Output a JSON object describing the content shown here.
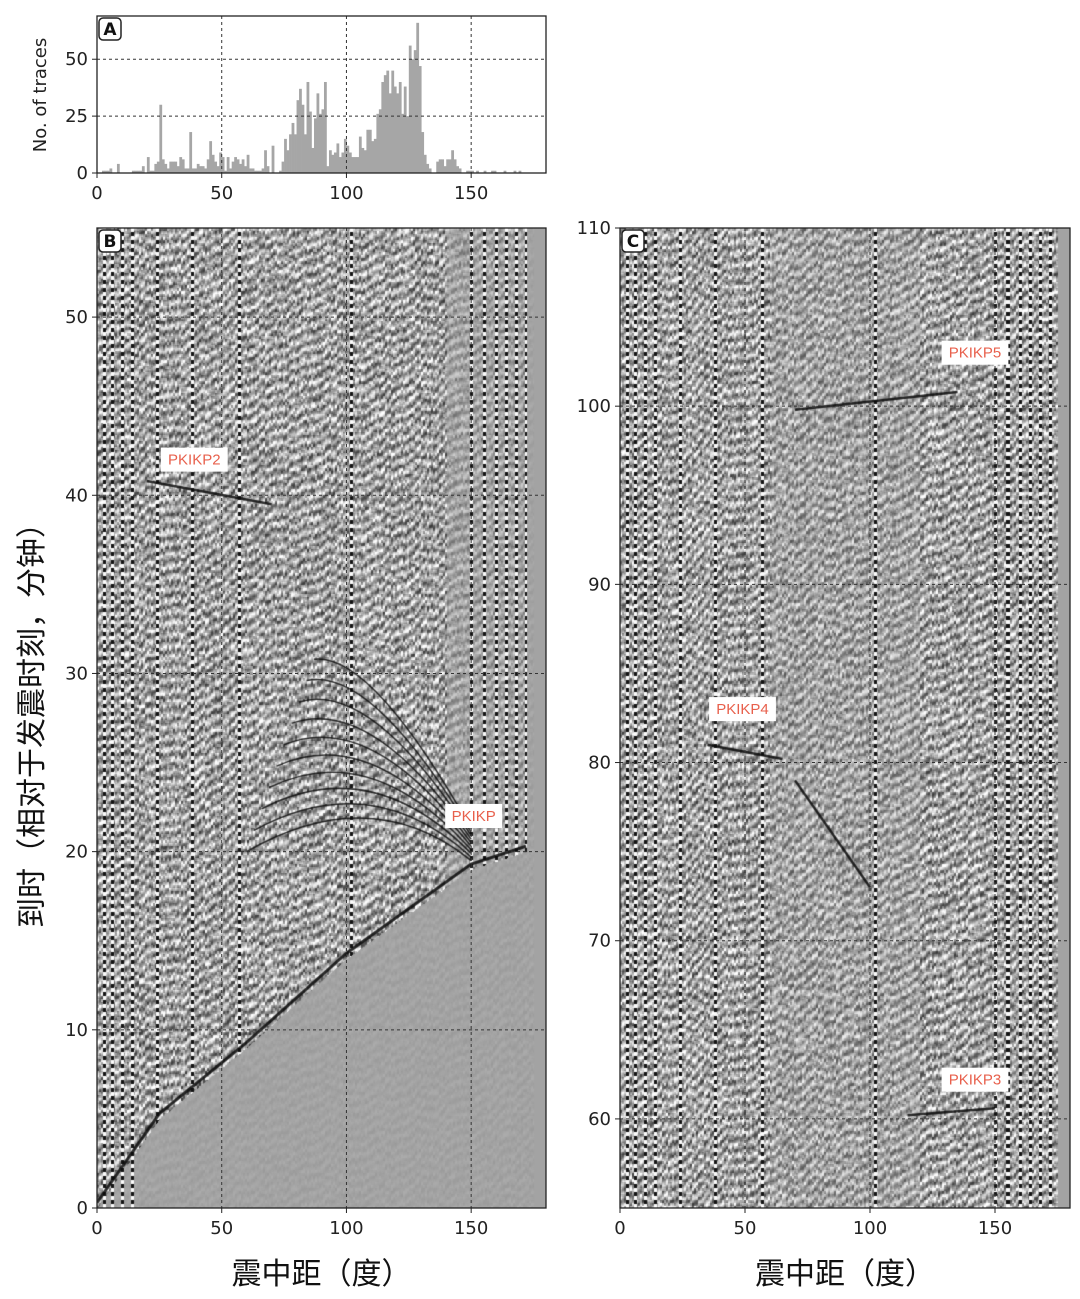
{
  "chart_data": [
    {
      "panel": "A",
      "type": "bar",
      "ylabel": "No. of traces",
      "xlabel": "",
      "xlim": [
        0,
        180
      ],
      "ylim": [
        0,
        69
      ],
      "xticks": [
        0,
        50,
        100,
        150
      ],
      "yticks": [
        0,
        25,
        50
      ],
      "grid": true,
      "bin_width": 1,
      "values": [
        0,
        0,
        1,
        1,
        1,
        2,
        0,
        0,
        4,
        0,
        0,
        0,
        0,
        0,
        1,
        1,
        1,
        1,
        3,
        0,
        7,
        1,
        1,
        4,
        5,
        30,
        6,
        4,
        2,
        5,
        5,
        5,
        3,
        7,
        6,
        2,
        2,
        18,
        2,
        2,
        4,
        3,
        3,
        2,
        6,
        14,
        8,
        5,
        3,
        9,
        7,
        1,
        7,
        2,
        5,
        7,
        6,
        4,
        6,
        3,
        8,
        2,
        2,
        1,
        1,
        1,
        2,
        10,
        3,
        0,
        12,
        0,
        0,
        1,
        5,
        15,
        10,
        17,
        22,
        17,
        32,
        37,
        30,
        17,
        40,
        27,
        11,
        24,
        35,
        26,
        28,
        40,
        3,
        10,
        8,
        9,
        13,
        7,
        9,
        15,
        12,
        9,
        7,
        7,
        7,
        16,
        11,
        10,
        19,
        19,
        14,
        15,
        26,
        28,
        40,
        43,
        45,
        35,
        45,
        38,
        35,
        40,
        26,
        38,
        25,
        56,
        50,
        54,
        66,
        47,
        18,
        8,
        4,
        2,
        0,
        0,
        5,
        6,
        6,
        3,
        6,
        6,
        10,
        6,
        3,
        2,
        0,
        0,
        1,
        1,
        1,
        0,
        1,
        0,
        0,
        1,
        0,
        0,
        1,
        1,
        0,
        0,
        0,
        1,
        0,
        0,
        0,
        1,
        0,
        1,
        0,
        0,
        0,
        0,
        0,
        0,
        0,
        0,
        0,
        0
      ]
    },
    {
      "panel": "B",
      "type": "heatmap",
      "xlabel": "震中距（度）",
      "ylabel": "到时（相对于发震时刻，分钟）",
      "xlim": [
        0,
        180
      ],
      "ylim": [
        0,
        55
      ],
      "xticks": [
        0,
        50,
        100,
        150
      ],
      "yticks": [
        0,
        10,
        20,
        30,
        40,
        50
      ],
      "grid": true,
      "first_arrival_curve": [
        [
          0,
          0
        ],
        [
          25,
          5
        ],
        [
          60,
          9
        ],
        [
          100,
          14
        ],
        [
          150,
          19
        ],
        [
          172,
          20
        ]
      ],
      "annotations": [
        {
          "text": "PKIKP2",
          "x": 39,
          "y": 42
        },
        {
          "text": "PKIKP",
          "x": 151,
          "y": 22
        }
      ]
    },
    {
      "panel": "C",
      "type": "heatmap",
      "xlabel": "震中距（度）",
      "xlim": [
        0,
        180
      ],
      "ylim": [
        55,
        110
      ],
      "xticks": [
        0,
        50,
        100,
        150
      ],
      "yticks": [
        60,
        70,
        80,
        90,
        100,
        110
      ],
      "grid": true,
      "annotations": [
        {
          "text": "PKIKP5",
          "x": 142,
          "y": 103
        },
        {
          "text": "PKIKP4",
          "x": 49,
          "y": 83
        },
        {
          "text": "PKIKP3",
          "x": 142,
          "y": 62.2
        }
      ]
    }
  ],
  "colors": {
    "bars": "#a6a6a6",
    "background": "#a3a3a3",
    "annotation": "#e8604c",
    "grid": "#333333"
  }
}
